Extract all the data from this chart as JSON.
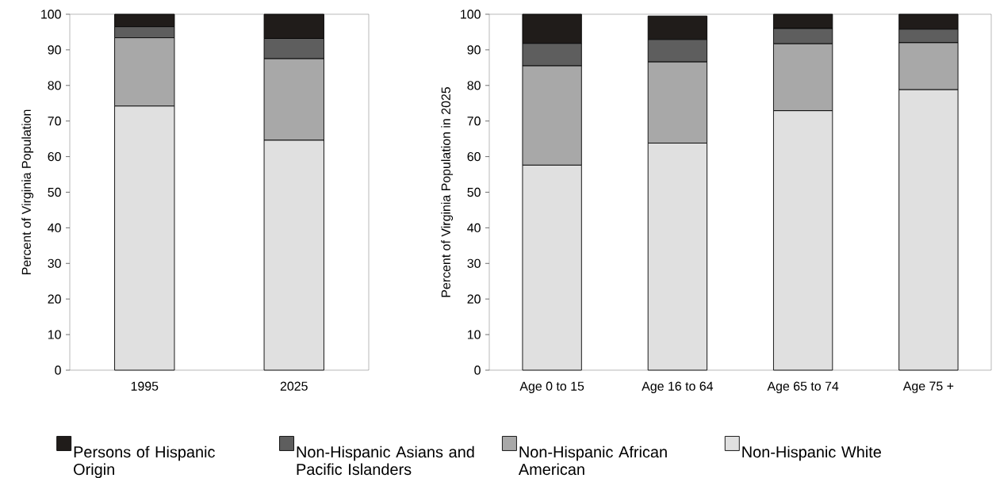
{
  "chart_data": [
    {
      "type": "bar",
      "stacked": true,
      "categories": [
        "1995",
        "2025"
      ],
      "ylabel": "Percent of Virginia Population",
      "ylim": [
        0,
        100
      ],
      "yticks": [
        0,
        10,
        20,
        30,
        40,
        50,
        60,
        70,
        80,
        90,
        100
      ],
      "legend": "bottom",
      "series": [
        {
          "name": "Non-Hispanic White",
          "color": "#e0e0e0",
          "values": [
            74.2,
            64.6
          ]
        },
        {
          "name": "Non-Hispanic African American",
          "color": "#a8a8a8",
          "values": [
            19.2,
            22.9
          ]
        },
        {
          "name": "Non-Hispanic Asians and Pacific Islanders",
          "color": "#5e5e5e",
          "values": [
            3.1,
            5.7
          ]
        },
        {
          "name": "Persons of Hispanic Origin",
          "color": "#201c1a",
          "values": [
            3.5,
            6.8
          ]
        }
      ]
    },
    {
      "type": "bar",
      "stacked": true,
      "categories": [
        "Age 0 to 15",
        "Age 16 to 64",
        "Age 65 to 74",
        "Age 75 +"
      ],
      "ylabel": "Percent of Virginia Population in 2025",
      "ylim": [
        0,
        100
      ],
      "yticks": [
        0,
        10,
        20,
        30,
        40,
        50,
        60,
        70,
        80,
        90,
        100
      ],
      "series": [
        {
          "color": "#e0e0e0",
          "values": [
            57.6,
            63.8,
            72.9,
            78.8
          ]
        },
        {
          "color": "#a8a8a8",
          "values": [
            27.9,
            22.8,
            18.8,
            13.2
          ]
        },
        {
          "color": "#5e5e5e",
          "values": [
            6.3,
            6.3,
            4.3,
            3.8
          ]
        },
        {
          "color": "#201c1a",
          "values": [
            8.2,
            6.6,
            4.0,
            4.2
          ]
        }
      ]
    }
  ]
}
